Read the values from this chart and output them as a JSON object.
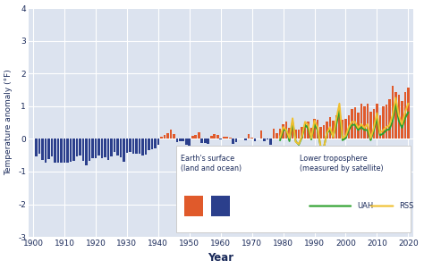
{
  "title": "",
  "xlabel": "Year",
  "ylabel": "Temperature anomaly (°F)",
  "xlim": [
    1898.5,
    2021.5
  ],
  "ylim": [
    -3,
    4
  ],
  "yticks": [
    -3,
    -2,
    -1,
    0,
    1,
    2,
    3,
    4
  ],
  "xticks": [
    1900,
    1910,
    1920,
    1930,
    1940,
    1950,
    1960,
    1970,
    1980,
    1990,
    2000,
    2010,
    2020
  ],
  "bg_color": "#dce3ef",
  "bar_color_pos": "#e05a2b",
  "bar_color_neg": "#2b3f8c",
  "uah_color": "#2ca02c",
  "rss_color": "#f0c030",
  "surface_data": {
    "years": [
      1901,
      1902,
      1903,
      1904,
      1905,
      1906,
      1907,
      1908,
      1909,
      1910,
      1911,
      1912,
      1913,
      1914,
      1915,
      1916,
      1917,
      1918,
      1919,
      1920,
      1921,
      1922,
      1923,
      1924,
      1925,
      1926,
      1927,
      1928,
      1929,
      1930,
      1931,
      1932,
      1933,
      1934,
      1935,
      1936,
      1937,
      1938,
      1939,
      1940,
      1941,
      1942,
      1943,
      1944,
      1945,
      1946,
      1947,
      1948,
      1949,
      1950,
      1951,
      1952,
      1953,
      1954,
      1955,
      1956,
      1957,
      1958,
      1959,
      1960,
      1961,
      1962,
      1963,
      1964,
      1965,
      1966,
      1967,
      1968,
      1969,
      1970,
      1971,
      1972,
      1973,
      1974,
      1975,
      1976,
      1977,
      1978,
      1979,
      1980,
      1981,
      1982,
      1983,
      1984,
      1985,
      1986,
      1987,
      1988,
      1989,
      1990,
      1991,
      1992,
      1993,
      1994,
      1995,
      1996,
      1997,
      1998,
      1999,
      2000,
      2001,
      2002,
      2003,
      2004,
      2005,
      2006,
      2007,
      2008,
      2009,
      2010,
      2011,
      2012,
      2013,
      2014,
      2015,
      2016,
      2017,
      2018,
      2019,
      2020
    ],
    "values": [
      -0.54,
      -0.45,
      -0.65,
      -0.72,
      -0.63,
      -0.54,
      -0.73,
      -0.72,
      -0.72,
      -0.72,
      -0.72,
      -0.7,
      -0.66,
      -0.54,
      -0.52,
      -0.66,
      -0.81,
      -0.68,
      -0.59,
      -0.6,
      -0.52,
      -0.6,
      -0.57,
      -0.64,
      -0.54,
      -0.4,
      -0.52,
      -0.57,
      -0.7,
      -0.44,
      -0.4,
      -0.45,
      -0.45,
      -0.45,
      -0.5,
      -0.47,
      -0.35,
      -0.32,
      -0.28,
      -0.18,
      0.07,
      0.11,
      0.18,
      0.27,
      0.16,
      -0.09,
      -0.07,
      -0.07,
      -0.18,
      -0.25,
      0.09,
      0.11,
      0.2,
      -0.13,
      -0.14,
      -0.16,
      0.09,
      0.14,
      0.11,
      -0.02,
      0.07,
      0.07,
      0.05,
      -0.16,
      -0.11,
      0.02,
      0.02,
      -0.05,
      0.14,
      0.04,
      -0.07,
      0.02,
      0.25,
      -0.07,
      -0.02,
      -0.18,
      0.32,
      0.18,
      0.32,
      0.45,
      0.54,
      0.34,
      0.52,
      0.27,
      0.27,
      0.36,
      0.52,
      0.54,
      0.34,
      0.61,
      0.59,
      0.36,
      0.43,
      0.52,
      0.67,
      0.56,
      0.72,
      0.9,
      0.58,
      0.61,
      0.72,
      0.9,
      0.97,
      0.81,
      1.08,
      0.99,
      1.08,
      0.83,
      0.92,
      1.08,
      0.72,
      0.99,
      1.04,
      1.22,
      1.62,
      1.44,
      1.35,
      1.17,
      1.44,
      1.58
    ]
  },
  "uah_data": {
    "years": [
      1979,
      1980,
      1981,
      1982,
      1983,
      1984,
      1985,
      1986,
      1987,
      1988,
      1989,
      1990,
      1991,
      1992,
      1993,
      1994,
      1995,
      1996,
      1997,
      1998,
      1999,
      2000,
      2001,
      2002,
      2003,
      2004,
      2005,
      2006,
      2007,
      2008,
      2009,
      2010,
      2011,
      2012,
      2013,
      2014,
      2015,
      2016,
      2017,
      2018,
      2019,
      2020
    ],
    "values": [
      -0.04,
      0.27,
      0.27,
      -0.07,
      0.52,
      -0.07,
      -0.18,
      0.05,
      0.43,
      0.32,
      -0.02,
      0.45,
      0.27,
      -0.25,
      -0.27,
      0.18,
      0.27,
      0.07,
      0.43,
      0.9,
      -0.04,
      0.02,
      0.27,
      0.43,
      0.43,
      0.27,
      0.36,
      0.27,
      0.27,
      -0.04,
      0.25,
      0.63,
      0.11,
      0.16,
      0.27,
      0.29,
      0.54,
      1.08,
      0.56,
      0.34,
      0.63,
      0.81
    ]
  },
  "rss_data": {
    "years": [
      1979,
      1980,
      1981,
      1982,
      1983,
      1984,
      1985,
      1986,
      1987,
      1988,
      1989,
      1990,
      1991,
      1992,
      1993,
      1994,
      1995,
      1996,
      1997,
      1998,
      1999,
      2000,
      2001,
      2002,
      2003,
      2004,
      2005,
      2006,
      2007,
      2008,
      2009,
      2010,
      2011,
      2012,
      2013,
      2014,
      2015,
      2016,
      2017,
      2018,
      2019,
      2020
    ],
    "values": [
      0.05,
      0.36,
      0.27,
      0.02,
      0.63,
      -0.09,
      -0.16,
      0.09,
      0.52,
      0.43,
      0.02,
      0.56,
      0.36,
      -0.25,
      -0.27,
      0.18,
      0.36,
      0.05,
      0.61,
      1.08,
      0.02,
      0.09,
      0.36,
      0.52,
      0.52,
      0.34,
      0.45,
      0.34,
      0.45,
      0.02,
      0.34,
      0.79,
      0.18,
      0.27,
      0.36,
      0.41,
      0.72,
      1.26,
      0.72,
      0.45,
      0.81,
      1.08
    ]
  },
  "legend_title1": "Earth's surface\n(land and ocean)",
  "legend_title2": "Lower troposphere\n(measured by satellite)",
  "legend_uah": "UAH",
  "legend_rss": "RSS"
}
